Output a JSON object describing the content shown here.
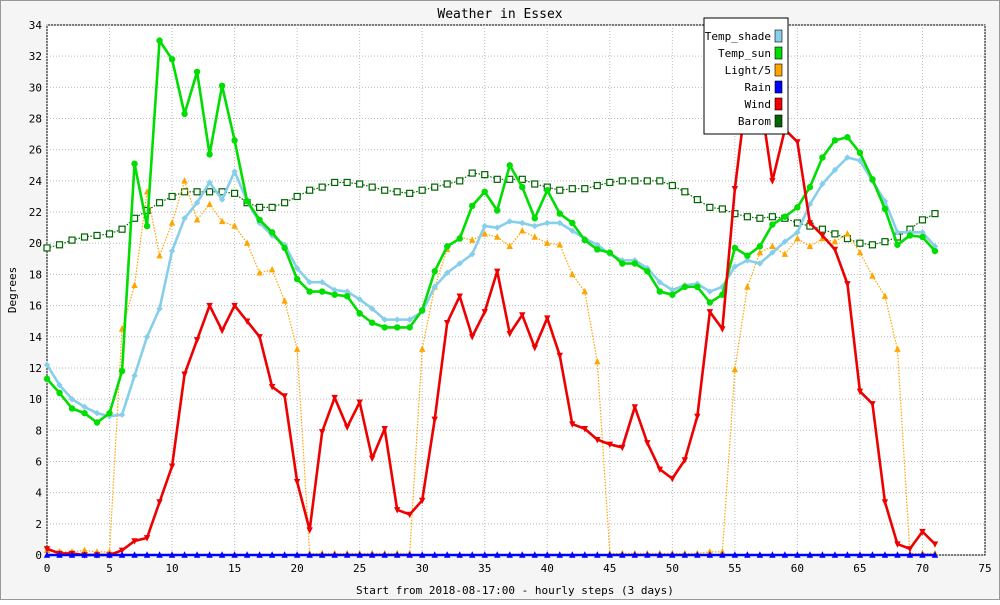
{
  "chart_data": {
    "type": "line",
    "title": "Weather in Essex",
    "xlabel": "Start from 2018-08-17:00 - hourly steps (3 days)",
    "ylabel": "Degrees",
    "xlim": [
      0,
      75
    ],
    "ylim": [
      0,
      34
    ],
    "x_ticks": [
      0,
      5,
      10,
      15,
      20,
      25,
      30,
      35,
      40,
      45,
      50,
      55,
      60,
      65,
      70,
      75
    ],
    "y_ticks": [
      0,
      2,
      4,
      6,
      8,
      10,
      12,
      14,
      16,
      18,
      20,
      22,
      24,
      26,
      28,
      30,
      32,
      34
    ],
    "grid": true,
    "legend_position": "top-right",
    "series": [
      {
        "name": "Temp_shade",
        "color": "#87ceeb",
        "marker": "diamond",
        "style": "solid",
        "values": [
          12.2,
          10.9,
          10.0,
          9.5,
          9.1,
          8.9,
          9.0,
          11.5,
          14.0,
          15.8,
          19.5,
          21.6,
          22.6,
          23.9,
          22.8,
          24.6,
          22.7,
          21.3,
          20.5,
          19.9,
          18.4,
          17.5,
          17.5,
          17.0,
          16.9,
          16.4,
          15.8,
          15.1,
          15.1,
          15.1,
          15.6,
          17.2,
          18.1,
          18.7,
          19.3,
          21.1,
          21.0,
          21.4,
          21.3,
          21.1,
          21.3,
          21.3,
          20.8,
          20.3,
          19.9,
          19.3,
          18.9,
          18.9,
          18.4,
          17.5,
          17.0,
          17.3,
          17.4,
          16.9,
          17.2,
          18.5,
          18.9,
          18.7,
          19.4,
          20.1,
          20.7,
          22.5,
          23.8,
          24.7,
          25.5,
          25.3,
          24.0,
          22.7,
          20.7,
          20.7,
          20.7,
          19.8
        ]
      },
      {
        "name": "Temp_sun",
        "color": "#00dd00",
        "marker": "circle",
        "style": "solid",
        "values": [
          11.3,
          10.4,
          9.4,
          9.1,
          8.5,
          9.1,
          11.8,
          25.1,
          21.1,
          33.0,
          31.8,
          28.3,
          31.0,
          25.7,
          30.1,
          26.6,
          22.7,
          21.5,
          20.7,
          19.7,
          17.7,
          16.9,
          16.9,
          16.7,
          16.6,
          15.5,
          14.9,
          14.6,
          14.6,
          14.6,
          15.7,
          18.2,
          19.8,
          20.3,
          22.4,
          23.3,
          22.1,
          25.0,
          23.6,
          21.6,
          23.4,
          21.9,
          21.3,
          20.2,
          19.6,
          19.4,
          18.7,
          18.7,
          18.2,
          16.9,
          16.7,
          17.2,
          17.2,
          16.2,
          16.7,
          19.7,
          19.2,
          19.8,
          21.2,
          21.7,
          22.3,
          23.6,
          25.5,
          26.6,
          26.8,
          25.8,
          24.1,
          22.2,
          19.9,
          20.5,
          20.4,
          19.5
        ]
      },
      {
        "name": "Light/5",
        "color": "#ffa500",
        "marker": "triangle-up",
        "style": "dotted",
        "values": [
          0.3,
          0.2,
          0.2,
          0.3,
          0.2,
          0.2,
          14.5,
          17.3,
          23.3,
          19.2,
          21.3,
          24.0,
          21.5,
          22.5,
          21.4,
          21.1,
          20.0,
          18.1,
          18.3,
          16.3,
          13.2,
          0.1,
          0.1,
          0.1,
          0.1,
          0.1,
          0.1,
          0.1,
          0.1,
          0.1,
          13.2,
          17.2,
          19.6,
          20.4,
          20.2,
          20.6,
          20.4,
          19.8,
          20.8,
          20.4,
          20.0,
          19.9,
          18.0,
          16.9,
          12.4,
          0.1,
          0.1,
          0.1,
          0.1,
          0.1,
          0.1,
          0.1,
          0.1,
          0.2,
          0.2,
          11.9,
          17.2,
          19.4,
          19.8,
          19.3,
          20.3,
          19.8,
          20.3,
          20.1,
          20.6,
          19.4,
          17.9,
          16.6,
          13.2,
          0.1,
          0.1,
          0.1
        ]
      },
      {
        "name": "Rain",
        "color": "#0000ff",
        "marker": "triangle-up",
        "style": "solid",
        "values": [
          0,
          0,
          0,
          0,
          0,
          0,
          0,
          0,
          0,
          0,
          0,
          0,
          0,
          0,
          0,
          0,
          0,
          0,
          0,
          0,
          0,
          0,
          0,
          0,
          0,
          0,
          0,
          0,
          0,
          0,
          0,
          0,
          0,
          0,
          0,
          0,
          0,
          0,
          0,
          0,
          0,
          0,
          0,
          0,
          0,
          0,
          0,
          0,
          0,
          0,
          0,
          0,
          0,
          0,
          0,
          0,
          0,
          0,
          0,
          0,
          0,
          0,
          0,
          0,
          0,
          0,
          0,
          0,
          0,
          0,
          0,
          0
        ]
      },
      {
        "name": "Wind",
        "color": "#ee0000",
        "marker": "triangle-down",
        "style": "solid",
        "values": [
          0.4,
          0.1,
          0.1,
          0.0,
          0.0,
          0.0,
          0.3,
          0.9,
          1.1,
          3.4,
          5.7,
          11.6,
          13.8,
          16.0,
          14.4,
          16.0,
          15.0,
          14.0,
          10.8,
          10.2,
          4.7,
          1.6,
          7.9,
          10.1,
          8.2,
          9.8,
          6.2,
          8.1,
          2.9,
          2.6,
          3.5,
          8.7,
          14.9,
          16.6,
          14.0,
          15.6,
          18.2,
          14.2,
          15.4,
          13.3,
          15.2,
          12.8,
          8.4,
          8.1,
          7.4,
          7.1,
          6.9,
          9.5,
          7.2,
          5.5,
          4.9,
          6.1,
          8.9,
          15.6,
          14.5,
          23.5,
          30.0,
          29.5,
          24.0,
          27.3,
          26.5,
          21.3,
          20.5,
          19.6,
          17.4,
          10.5,
          9.7,
          3.4,
          0.7,
          0.4,
          1.5,
          0.7
        ]
      },
      {
        "name": "Barom",
        "color": "#006400",
        "marker": "square",
        "style": "dotted",
        "values": [
          19.7,
          19.9,
          20.2,
          20.4,
          20.5,
          20.6,
          20.9,
          21.6,
          22.1,
          22.6,
          23.0,
          23.3,
          23.3,
          23.3,
          23.3,
          23.2,
          22.6,
          22.3,
          22.3,
          22.6,
          23.0,
          23.4,
          23.6,
          23.9,
          23.9,
          23.8,
          23.6,
          23.4,
          23.3,
          23.2,
          23.4,
          23.6,
          23.8,
          24.0,
          24.5,
          24.4,
          24.1,
          24.1,
          24.1,
          23.8,
          23.6,
          23.4,
          23.5,
          23.5,
          23.7,
          23.9,
          24.0,
          24.0,
          24.0,
          24.0,
          23.7,
          23.3,
          22.8,
          22.3,
          22.2,
          21.9,
          21.7,
          21.6,
          21.7,
          21.6,
          21.3,
          21.1,
          20.9,
          20.6,
          20.3,
          20.0,
          19.9,
          20.1,
          20.4,
          20.9,
          21.5,
          21.9
        ]
      }
    ]
  }
}
